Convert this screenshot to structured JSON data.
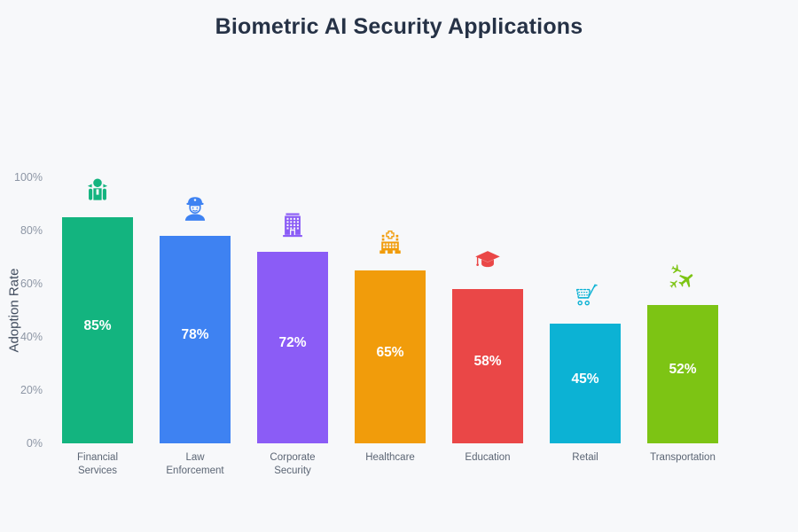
{
  "chart_data": {
    "type": "bar",
    "title": "Biometric AI Security Applications",
    "xlabel": "",
    "ylabel": "Adoption Rate",
    "ylim": [
      0,
      100
    ],
    "yticks": [
      0,
      20,
      40,
      60,
      80,
      100
    ],
    "ytick_labels": [
      "0%",
      "20%",
      "40%",
      "60%",
      "80%",
      "100%"
    ],
    "grid": false,
    "legend": "none",
    "categories": [
      "Financial Services",
      "Law Enforcement",
      "Corporate Security",
      "Healthcare",
      "Education",
      "Retail",
      "Transportation"
    ],
    "category_label_lines": [
      [
        "Financial",
        "Services"
      ],
      [
        "Law",
        "Enforcement"
      ],
      [
        "Corporate",
        "Security"
      ],
      [
        "Healthcare"
      ],
      [
        "Education"
      ],
      [
        "Retail"
      ],
      [
        "Transportation"
      ]
    ],
    "values": [
      85,
      78,
      72,
      65,
      58,
      45,
      52
    ],
    "value_labels": [
      "85%",
      "78%",
      "72%",
      "65%",
      "58%",
      "45%",
      "52%"
    ],
    "bar_colors": [
      "#13b47f",
      "#3e82f2",
      "#8b5cf6",
      "#f19c0b",
      "#ea4747",
      "#0cb2d4",
      "#7dc414"
    ],
    "icons": [
      "person-tie-icon",
      "police-officer-icon",
      "office-building-icon",
      "hospital-icon",
      "graduation-cap-icon",
      "shopping-cart-icon",
      "airplanes-icon"
    ]
  },
  "colors": {
    "background": "#f7f8fa",
    "title_text": "#263246",
    "y_tick_text": "#8d96a5",
    "y_axis_title_text": "#414c5e",
    "x_tick_text": "#5b6574",
    "bar_value_text": "#ffffff"
  }
}
